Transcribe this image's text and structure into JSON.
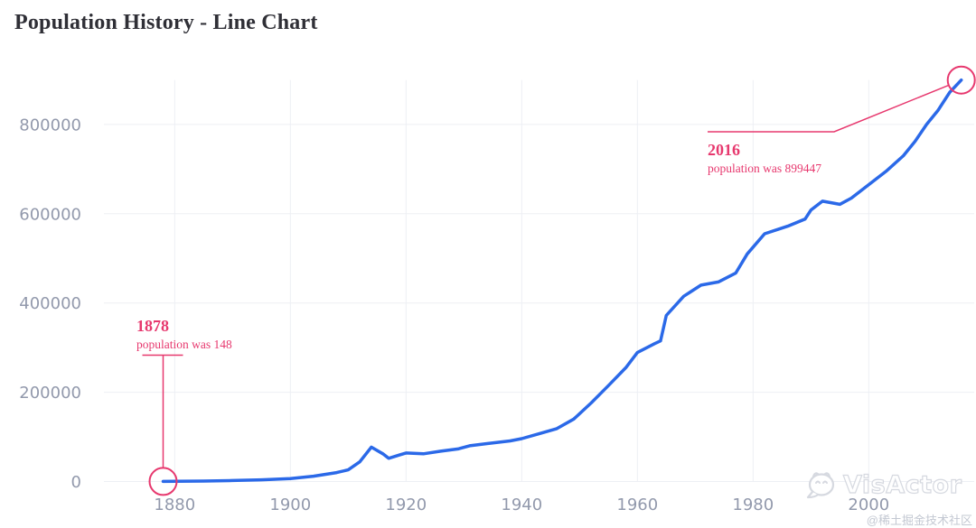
{
  "title": "Population History - Line Chart",
  "watermarks": {
    "visactor": "VisActor",
    "juejin": "@稀土掘金技术社区"
  },
  "colors": {
    "line": "#2B69E8",
    "accent": "#E7386E",
    "grid": "#EDEFF4",
    "axis_label": "#9299AC",
    "title": "#2F2F36"
  },
  "chart_data": {
    "type": "line",
    "title": "Population History - Line Chart",
    "xlabel": "",
    "ylabel": "",
    "grid": true,
    "legend": "none",
    "xlim": [
      1878,
      2016
    ],
    "ylim": [
      0,
      899447
    ],
    "x_ticks": [
      1880,
      1900,
      1920,
      1940,
      1960,
      1980,
      2000
    ],
    "y_ticks": [
      0,
      200000,
      400000,
      600000,
      800000
    ],
    "series": [
      {
        "name": "population",
        "points": [
          [
            1878,
            148
          ],
          [
            1880,
            400
          ],
          [
            1885,
            1100
          ],
          [
            1890,
            2200
          ],
          [
            1895,
            3800
          ],
          [
            1900,
            6600
          ],
          [
            1904,
            12000
          ],
          [
            1908,
            20000
          ],
          [
            1910,
            26000
          ],
          [
            1912,
            44000
          ],
          [
            1914,
            77000
          ],
          [
            1916,
            62000
          ],
          [
            1917,
            52000
          ],
          [
            1919,
            60000
          ],
          [
            1920,
            64000
          ],
          [
            1923,
            62000
          ],
          [
            1926,
            68000
          ],
          [
            1929,
            73000
          ],
          [
            1931,
            80000
          ],
          [
            1934,
            85000
          ],
          [
            1938,
            91000
          ],
          [
            1940,
            96000
          ],
          [
            1943,
            107000
          ],
          [
            1946,
            118000
          ],
          [
            1949,
            140000
          ],
          [
            1952,
            176000
          ],
          [
            1955,
            215000
          ],
          [
            1958,
            255000
          ],
          [
            1960,
            289000
          ],
          [
            1963,
            309000
          ],
          [
            1964,
            315000
          ],
          [
            1965,
            372000
          ],
          [
            1968,
            415000
          ],
          [
            1971,
            440000
          ],
          [
            1974,
            447000
          ],
          [
            1977,
            467000
          ],
          [
            1979,
            510000
          ],
          [
            1982,
            555000
          ],
          [
            1986,
            572000
          ],
          [
            1989,
            588000
          ],
          [
            1990,
            608000
          ],
          [
            1992,
            628000
          ],
          [
            1995,
            621000
          ],
          [
            1997,
            635000
          ],
          [
            2000,
            665000
          ],
          [
            2003,
            695000
          ],
          [
            2006,
            730000
          ],
          [
            2008,
            762000
          ],
          [
            2010,
            800000
          ],
          [
            2012,
            832000
          ],
          [
            2014,
            872000
          ],
          [
            2016,
            899447
          ]
        ]
      }
    ],
    "annotations": [
      {
        "year": 1878,
        "value": 148,
        "title": "1878",
        "text": "population was 148"
      },
      {
        "year": 2016,
        "value": 899447,
        "title": "2016",
        "text": "population was 899447"
      }
    ]
  }
}
